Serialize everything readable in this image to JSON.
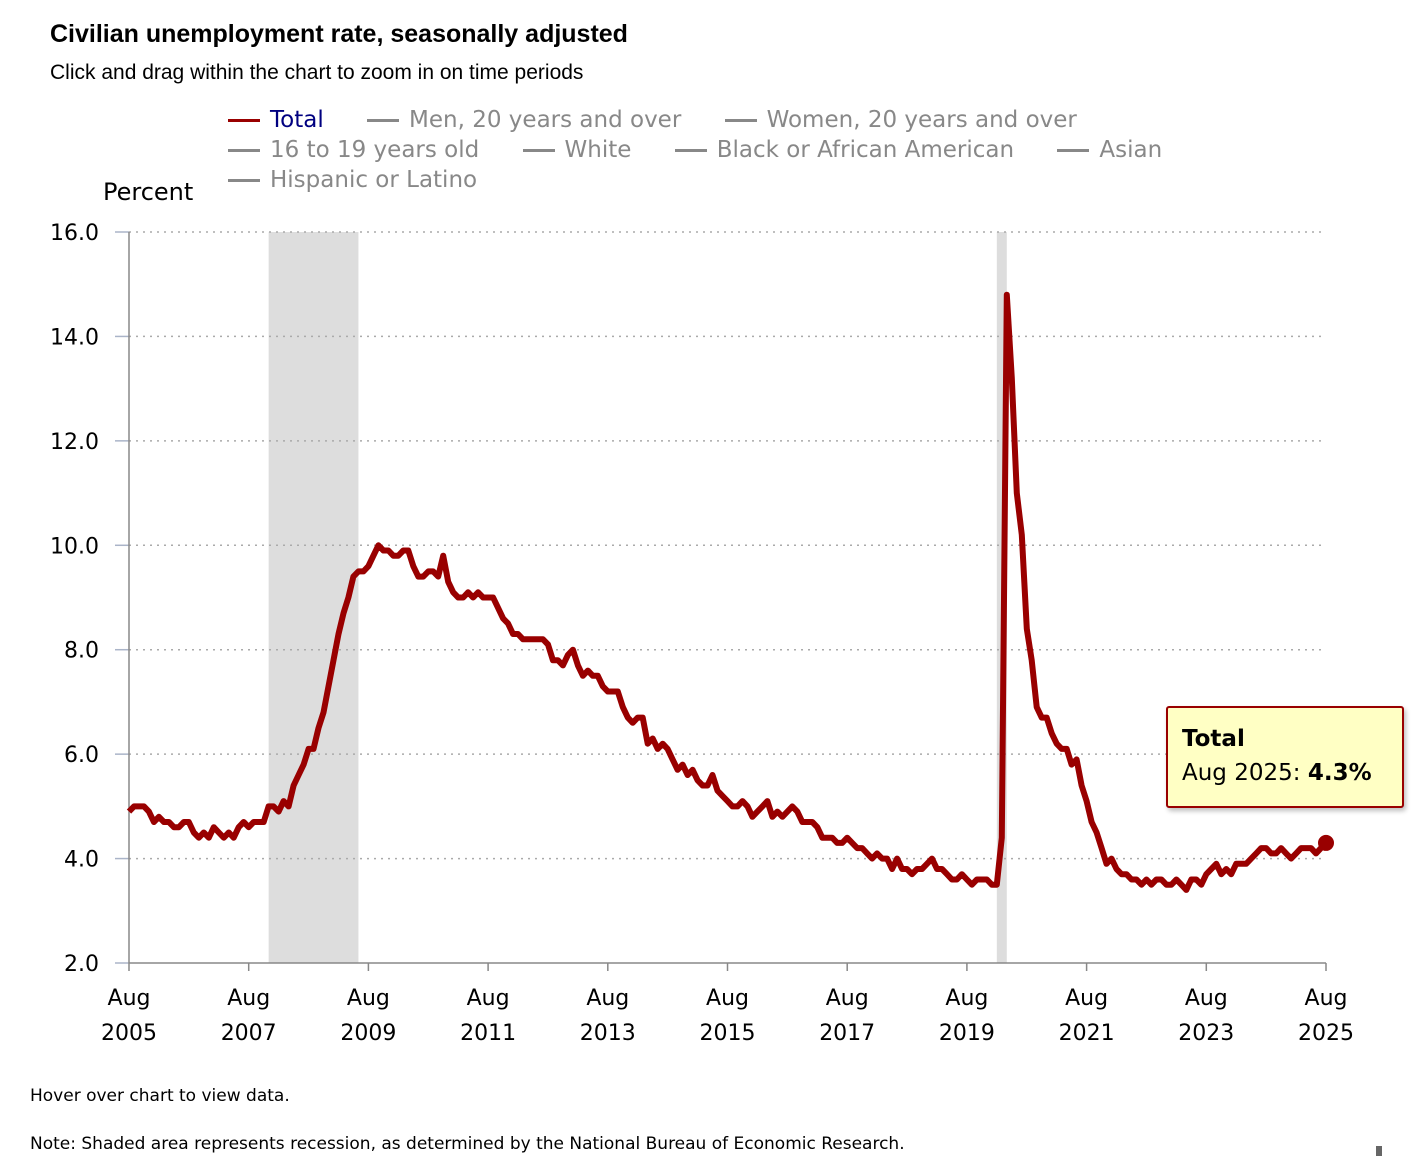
{
  "title": "Civilian unemployment rate, seasonally adjusted",
  "subtitle": "Click and drag within the chart to zoom in on time periods",
  "legend": [
    "Total",
    "Men, 20 years and over",
    "Women, 20 years and over",
    "16 to 19 years old",
    "White",
    "Black or African American",
    "Asian",
    "Hispanic or Latino"
  ],
  "tooltip": {
    "title": "Total",
    "date": "Aug 2025:",
    "value": "4.3%"
  },
  "footer": {
    "hover": "Hover over chart to view data.",
    "note": "Note: Shaded area represents recession, as determined by the National Bureau of Economic Research."
  },
  "colors": {
    "series": "#990000",
    "recession": "#dddddd",
    "legend_active": "#000080",
    "legend_inactive": "#888888"
  },
  "chart_data": {
    "type": "line",
    "title": "Civilian unemployment rate, seasonally adjusted",
    "ylabel": "Percent",
    "xlabel": "",
    "ylim": [
      2,
      16
    ],
    "yticks": [
      "2.0",
      "4.0",
      "6.0",
      "8.0",
      "10.0",
      "12.0",
      "14.0",
      "16.0"
    ],
    "xticks": [
      [
        "Aug",
        "2005"
      ],
      [
        "Aug",
        "2007"
      ],
      [
        "Aug",
        "2009"
      ],
      [
        "Aug",
        "2011"
      ],
      [
        "Aug",
        "2013"
      ],
      [
        "Aug",
        "2015"
      ],
      [
        "Aug",
        "2017"
      ],
      [
        "Aug",
        "2019"
      ],
      [
        "Aug",
        "2021"
      ],
      [
        "Aug",
        "2023"
      ],
      [
        "Aug",
        "2025"
      ]
    ],
    "x_start": "Aug 2005",
    "x_step": "month",
    "grid": "horizontal dotted",
    "legend_position": "top",
    "recessions": [
      [
        "Dec 2007",
        "Jun 2009"
      ],
      [
        "Feb 2020",
        "Apr 2020"
      ]
    ],
    "series": [
      {
        "name": "Total",
        "values": [
          4.9,
          5.0,
          5.0,
          5.0,
          4.9,
          4.7,
          4.8,
          4.7,
          4.7,
          4.6,
          4.6,
          4.7,
          4.7,
          4.5,
          4.4,
          4.5,
          4.4,
          4.6,
          4.5,
          4.4,
          4.5,
          4.4,
          4.6,
          4.7,
          4.6,
          4.7,
          4.7,
          4.7,
          5.0,
          5.0,
          4.9,
          5.1,
          5.0,
          5.4,
          5.6,
          5.8,
          6.1,
          6.1,
          6.5,
          6.8,
          7.3,
          7.8,
          8.3,
          8.7,
          9.0,
          9.4,
          9.5,
          9.5,
          9.6,
          9.8,
          10.0,
          9.9,
          9.9,
          9.8,
          9.8,
          9.9,
          9.9,
          9.6,
          9.4,
          9.4,
          9.5,
          9.5,
          9.4,
          9.8,
          9.3,
          9.1,
          9.0,
          9.0,
          9.1,
          9.0,
          9.1,
          9.0,
          9.0,
          9.0,
          8.8,
          8.6,
          8.5,
          8.3,
          8.3,
          8.2,
          8.2,
          8.2,
          8.2,
          8.2,
          8.1,
          7.8,
          7.8,
          7.7,
          7.9,
          8.0,
          7.7,
          7.5,
          7.6,
          7.5,
          7.5,
          7.3,
          7.2,
          7.2,
          7.2,
          6.9,
          6.7,
          6.6,
          6.7,
          6.7,
          6.2,
          6.3,
          6.1,
          6.2,
          6.1,
          5.9,
          5.7,
          5.8,
          5.6,
          5.7,
          5.5,
          5.4,
          5.4,
          5.6,
          5.3,
          5.2,
          5.1,
          5.0,
          5.0,
          5.1,
          5.0,
          4.8,
          4.9,
          5.0,
          5.1,
          4.8,
          4.9,
          4.8,
          4.9,
          5.0,
          4.9,
          4.7,
          4.7,
          4.7,
          4.6,
          4.4,
          4.4,
          4.4,
          4.3,
          4.3,
          4.4,
          4.3,
          4.2,
          4.2,
          4.1,
          4.0,
          4.1,
          4.0,
          4.0,
          3.8,
          4.0,
          3.8,
          3.8,
          3.7,
          3.8,
          3.8,
          3.9,
          4.0,
          3.8,
          3.8,
          3.7,
          3.6,
          3.6,
          3.7,
          3.6,
          3.5,
          3.6,
          3.6,
          3.6,
          3.5,
          3.5,
          4.4,
          14.8,
          13.2,
          11.0,
          10.2,
          8.4,
          7.8,
          6.9,
          6.7,
          6.7,
          6.4,
          6.2,
          6.1,
          6.1,
          5.8,
          5.9,
          5.4,
          5.1,
          4.7,
          4.5,
          4.2,
          3.9,
          4.0,
          3.8,
          3.7,
          3.7,
          3.6,
          3.6,
          3.5,
          3.6,
          3.5,
          3.6,
          3.6,
          3.5,
          3.5,
          3.6,
          3.5,
          3.4,
          3.6,
          3.6,
          3.5,
          3.7,
          3.8,
          3.9,
          3.7,
          3.8,
          3.7,
          3.9,
          3.9,
          3.9,
          4.0,
          4.1,
          4.2,
          4.2,
          4.1,
          4.1,
          4.2,
          4.1,
          4.0,
          4.1,
          4.2,
          4.2,
          4.2,
          4.1,
          4.2,
          4.3
        ]
      }
    ]
  }
}
